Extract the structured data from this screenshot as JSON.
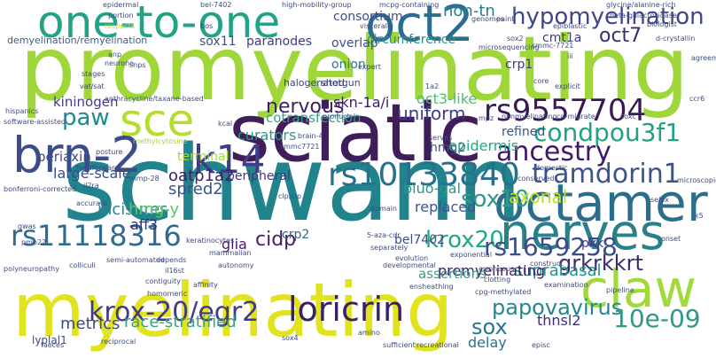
{
  "words": [
    {
      "text": "schwann",
      "color": "#21838c"
    },
    {
      "text": "promyelinating",
      "color": "#9fd73a"
    },
    {
      "text": "myelinating",
      "color": "#e0e31e"
    },
    {
      "text": "sciatic",
      "color": "#3e1d58"
    },
    {
      "text": "octamer",
      "color": "#2c6d8c"
    },
    {
      "text": "nerves",
      "color": "#2a8088"
    },
    {
      "text": "one-to-one",
      "color": "#21a386"
    },
    {
      "text": "oct2",
      "color": "#2a6d8e"
    },
    {
      "text": "brn-2",
      "color": "#3a4c8a"
    },
    {
      "text": "sce",
      "color": "#b5dd2b"
    },
    {
      "text": "claw",
      "color": "#9fda3a"
    },
    {
      "text": "k14",
      "color": "#3f3e86"
    },
    {
      "text": "loricrin",
      "color": "#3b1f6a"
    },
    {
      "text": "krox-20/egr2",
      "color": "#423b80"
    },
    {
      "text": "hypomyelination",
      "color": "#3d4689"
    },
    {
      "text": "rs10133840",
      "color": "#27718d"
    },
    {
      "text": "rs9557704",
      "color": "#3a1a55"
    },
    {
      "text": "condpou3f1",
      "color": "#22a185"
    },
    {
      "text": "tramdorin1",
      "color": "#3c5487"
    },
    {
      "text": "ancestry",
      "color": "#41176a"
    },
    {
      "text": "rs11118316",
      "color": "#2f6b8e"
    },
    {
      "text": "krox20",
      "color": "#22a884"
    },
    {
      "text": "rs1659258",
      "color": "#3a4d8a"
    },
    {
      "text": "grkrkkrt",
      "color": "#3a2d6e"
    },
    {
      "text": "papovavirus",
      "color": "#23888e"
    },
    {
      "text": "10e-09",
      "color": "#2c9a87"
    },
    {
      "text": "sox10",
      "color": "#2d9b8a"
    },
    {
      "text": "paw",
      "color": "#1e8a8d"
    },
    {
      "text": "nervous",
      "color": "#3b1e5e"
    },
    {
      "text": "uniform",
      "color": "#3f3d86"
    },
    {
      "text": "oct7",
      "color": "#3a2c70"
    },
    {
      "text": "cidp",
      "color": "#441d65"
    },
    {
      "text": "sox",
      "color": "#26778e"
    },
    {
      "text": "suprabasal",
      "color": "#21918c"
    },
    {
      "text": "race-stratified",
      "color": "#3c9e85"
    },
    {
      "text": "metrics",
      "color": "#3e4a89"
    },
    {
      "text": "incisures",
      "color": "#2f7f8e"
    },
    {
      "text": "spred2",
      "color": "#38548b"
    },
    {
      "text": "curators",
      "color": "#1f9d89"
    },
    {
      "text": "oatp1a2",
      "color": "#3a2166"
    },
    {
      "text": "kininogen",
      "color": "#433c84"
    },
    {
      "text": "large-scale",
      "color": "#3b4c8a"
    },
    {
      "text": "periaxin",
      "color": "#3c4b89"
    },
    {
      "text": "hmg-y",
      "color": "#5ec962"
    },
    {
      "text": "aff3",
      "color": "#2a2f6e"
    },
    {
      "text": "pxk",
      "color": "#3d3f85"
    },
    {
      "text": "glia",
      "color": "#481a6c"
    },
    {
      "text": "crp2",
      "color": "#30698e"
    },
    {
      "text": "replaced",
      "color": "#39568c"
    },
    {
      "text": "premyelinating",
      "color": "#3b1c60"
    },
    {
      "text": "assertions",
      "color": "#3c9e85"
    },
    {
      "text": "bluo-gal",
      "color": "#1f9e89"
    },
    {
      "text": "bel7402",
      "color": "#3d4d8a"
    },
    {
      "text": "hmg2",
      "color": "#3c508b"
    },
    {
      "text": "epidermis",
      "color": "#2ea386"
    },
    {
      "text": "axonal",
      "color": "#bddf26"
    },
    {
      "text": "refined",
      "color": "#3d5389"
    },
    {
      "text": "thnsl2",
      "color": "#3b2f74"
    },
    {
      "text": "delay",
      "color": "#2c728e"
    },
    {
      "text": "terminal",
      "color": "#a5db36"
    },
    {
      "text": "peripheral",
      "color": "#46337e"
    },
    {
      "text": "cotransfection",
      "color": "#3c9f8a"
    },
    {
      "text": "skn-1a/i",
      "color": "#3b1c5f"
    },
    {
      "text": "oct3-like",
      "color": "#4fbd6e"
    },
    {
      "text": "non-tn",
      "color": "#27808e"
    },
    {
      "text": "consortium",
      "color": "#3d4b89"
    },
    {
      "text": "circumference",
      "color": "#2a8c8c"
    },
    {
      "text": "sox11",
      "color": "#3b5289"
    },
    {
      "text": "paranodes",
      "color": "#3b3c83"
    },
    {
      "text": "overlap",
      "color": "#3e4d8a"
    },
    {
      "text": "onion",
      "color": "#2a7a8e"
    },
    {
      "text": "crp1",
      "color": "#3f3d86"
    },
    {
      "text": "cmt1a",
      "color": "#3c3f85"
    },
    {
      "text": "demyelination/remyelination",
      "color": "#3a5b8c"
    },
    {
      "text": "lyplal1",
      "color": "#3d4b89"
    },
    {
      "text": "halogenated",
      "color": "#3c4086"
    },
    {
      "text": "shotgun",
      "color": "#3f4688"
    },
    {
      "text": "uniform",
      "color": "#3f3d86"
    },
    {
      "text": "epidermal",
      "color": "#3b4c8a"
    },
    {
      "text": "bel-7402",
      "color": "#3b4f8a"
    },
    {
      "text": "portion",
      "color": "#3f4688"
    },
    {
      "text": "respects",
      "color": "#c8e020"
    },
    {
      "text": "bos",
      "color": "#3a3c84"
    },
    {
      "text": "glycine/alanine-rich",
      "color": "#3c4b89"
    },
    {
      "text": "epiblastic",
      "color": "#3b4c8a"
    },
    {
      "text": "d-crystallin",
      "color": "#3c4b89"
    },
    {
      "text": "snps",
      "color": "#3c4b89"
    },
    {
      "text": "vat/sat",
      "color": "#3d3f85"
    },
    {
      "text": "stages",
      "color": "#3b4c8a"
    },
    {
      "text": "anthracycline/taxane-based",
      "color": "#3b5289"
    },
    {
      "text": "hispanics",
      "color": "#3b4c8a"
    },
    {
      "text": "software-assisted",
      "color": "#3c4b89"
    },
    {
      "text": "bonferroni-corrected",
      "color": "#3c4b89"
    },
    {
      "text": "polyneuropathy",
      "color": "#3c4b89"
    },
    {
      "text": "kcal",
      "color": "#3c4b89"
    },
    {
      "text": "pronuclei",
      "color": "#3c4b89"
    },
    {
      "text": "methylcytosine",
      "color": "#9fd73a"
    },
    {
      "text": "posture",
      "color": "#3c4b89"
    },
    {
      "text": "whr",
      "color": "#3c4b89"
    },
    {
      "text": "feedforward",
      "color": "#3c4b89"
    },
    {
      "text": "il2ra",
      "color": "#3c4b89"
    },
    {
      "text": "gwas",
      "color": "#3c4b89"
    },
    {
      "text": "pmp22",
      "color": "#3c4b89"
    },
    {
      "text": "accurate",
      "color": "#3c4b89"
    },
    {
      "text": "colliculi",
      "color": "#3c4b89"
    },
    {
      "text": "semi-automated",
      "color": "#3c4b89"
    },
    {
      "text": "depends",
      "color": "#3c4b89"
    },
    {
      "text": "il16st",
      "color": "#3c4b89"
    },
    {
      "text": "contiguity",
      "color": "#3c4b89"
    },
    {
      "text": "homomeric",
      "color": "#3c4b89"
    },
    {
      "text": "keratinocytes",
      "color": "#3c4b89"
    },
    {
      "text": "mammalian",
      "color": "#3c4b89"
    },
    {
      "text": "autonomy",
      "color": "#3c4b89"
    },
    {
      "text": "affinity",
      "color": "#3c4b89"
    },
    {
      "text": "brain-4",
      "color": "#3c4b89"
    },
    {
      "text": "smmc7721",
      "color": "#3c4b89"
    },
    {
      "text": "clp/clp",
      "color": "#3c4b89"
    },
    {
      "text": "domain",
      "color": "#3c4b89"
    },
    {
      "text": "5-aza-cdr",
      "color": "#3c4b89"
    },
    {
      "text": "separately",
      "color": "#3c4b89"
    },
    {
      "text": "evolution",
      "color": "#3c4b89"
    },
    {
      "text": "developmental",
      "color": "#3c4b89"
    },
    {
      "text": "ensheathing",
      "color": "#3c4b89"
    },
    {
      "text": "exponential",
      "color": "#3c4b89"
    },
    {
      "text": "erroneous",
      "color": "#3c4b89"
    },
    {
      "text": "clotting",
      "color": "#3c4b89"
    },
    {
      "text": "cpg-methylated",
      "color": "#3c4b89"
    },
    {
      "text": "construct",
      "color": "#3c4b89"
    },
    {
      "text": "examination",
      "color": "#3c4b89"
    },
    {
      "text": "domestic",
      "color": "#3c4b89"
    },
    {
      "text": "conserved",
      "color": "#3c4b89"
    },
    {
      "text": "selex",
      "color": "#3c4b89"
    },
    {
      "text": "microscopic",
      "color": "#3c4b89"
    },
    {
      "text": "agreement",
      "color": "#3c4b89"
    },
    {
      "text": "explicit",
      "color": "#3c4b89"
    },
    {
      "text": "core",
      "color": "#3c4b89"
    },
    {
      "text": "paint",
      "color": "#3c4b89"
    },
    {
      "text": "genomes",
      "color": "#3c4b89"
    },
    {
      "text": "nonmyelinating",
      "color": "#3c4b89"
    },
    {
      "text": "co-migrate",
      "color": "#3c4b89"
    },
    {
      "text": "soxc",
      "color": "#3c4b89"
    },
    {
      "text": "serves",
      "color": "#3c4b89"
    },
    {
      "text": "expert",
      "color": "#3c4b89"
    },
    {
      "text": "sox2",
      "color": "#3c4b89"
    },
    {
      "text": "smmc-7721",
      "color": "#3c4b89"
    },
    {
      "text": "high-mobility-group",
      "color": "#3c4b89"
    },
    {
      "text": "mcpg-containing",
      "color": "#3c4b89"
    },
    {
      "text": "beta-galactosidase",
      "color": "#3c4b89"
    },
    {
      "text": "biologist",
      "color": "#3c4b89"
    },
    {
      "text": "viscerally",
      "color": "#3c4b89"
    },
    {
      "text": "sufficient",
      "color": "#3c4b89"
    },
    {
      "text": "recreational",
      "color": "#3c4b89"
    },
    {
      "text": "episc",
      "color": "#3c4b89"
    },
    {
      "text": "sox4",
      "color": "#3c4b89"
    },
    {
      "text": "amino",
      "color": "#3c4b89"
    },
    {
      "text": "pipeline",
      "color": "#3c4b89"
    },
    {
      "text": "onset",
      "color": "#3c4b89"
    },
    {
      "text": "ccr6",
      "color": "#3c4b89"
    },
    {
      "text": "iii",
      "color": "#3c4b89"
    },
    {
      "text": "anp",
      "color": "#3c4b89"
    },
    {
      "text": "neurone",
      "color": "#3c4b89"
    },
    {
      "text": "mmp-28",
      "color": "#3c4b89"
    },
    {
      "text": "reciprocal",
      "color": "#3c4b89"
    },
    {
      "text": "microsequencing",
      "color": "#3c4b89"
    },
    {
      "text": "1a2",
      "color": "#3c4b89"
    },
    {
      "text": "mpz",
      "color": "#3c4b89"
    },
    {
      "text": "k5",
      "color": "#3c4b89"
    },
    {
      "text": "faeces",
      "color": "#3c4b89"
    }
  ]
}
